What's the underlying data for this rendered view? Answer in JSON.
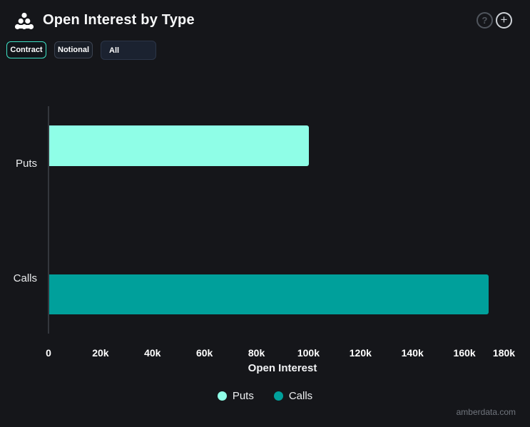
{
  "header": {
    "title": "Open Interest by Type"
  },
  "header_icons": {
    "help": "?",
    "add": "+"
  },
  "controls": {
    "contract_label": "Contract",
    "notional_label": "Notional",
    "type_filter_value": "All"
  },
  "chart_data": {
    "type": "bar",
    "orientation": "horizontal",
    "title": "Open Interest by Type",
    "categories": [
      "Puts",
      "Calls"
    ],
    "series": [
      {
        "name": "Puts",
        "value": 100000,
        "color": "#8ffee7"
      },
      {
        "name": "Calls",
        "value": 169000,
        "color": "#00a09b"
      }
    ],
    "xlabel": "Open Interest",
    "ylabel": "",
    "xlim": [
      0,
      180000
    ],
    "grid": false,
    "legend_position": "bottom",
    "x_ticks": [
      {
        "label": "0",
        "value": 0
      },
      {
        "label": "20k",
        "value": 20000
      },
      {
        "label": "40k",
        "value": 40000
      },
      {
        "label": "60k",
        "value": 60000
      },
      {
        "label": "80k",
        "value": 80000
      },
      {
        "label": "100k",
        "value": 100000
      },
      {
        "label": "120k",
        "value": 120000
      },
      {
        "label": "140k",
        "value": 140000
      },
      {
        "label": "160k",
        "value": 160000
      },
      {
        "label": "180k",
        "value": 180000
      }
    ]
  },
  "footer": {
    "watermark": "amberdata.com"
  },
  "colors": {
    "background": "#15161a",
    "axis_line": "#34373d",
    "accent_active": "#3ee0c4",
    "puts_bar": "#8ffee7",
    "calls_bar": "#00a09b"
  }
}
